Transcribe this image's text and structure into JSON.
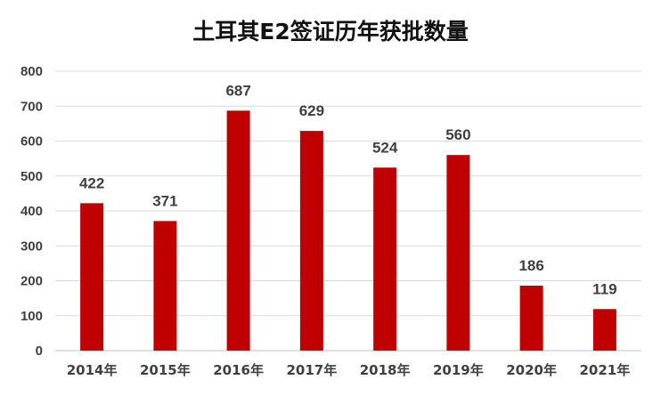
{
  "chart_data": {
    "type": "bar",
    "title": "土耳其E2签证历年获批数量",
    "categories": [
      "2014年",
      "2015年",
      "2016年",
      "2017年",
      "2018年",
      "2019年",
      "2020年",
      "2021年"
    ],
    "values": [
      422,
      371,
      687,
      629,
      524,
      560,
      186,
      119
    ],
    "yticks": [
      "0",
      "100",
      "200",
      "300",
      "400",
      "500",
      "600",
      "700",
      "800"
    ],
    "ylim": [
      0,
      800
    ],
    "grid": true,
    "data_labels": true,
    "bar_color": "#c00000"
  }
}
